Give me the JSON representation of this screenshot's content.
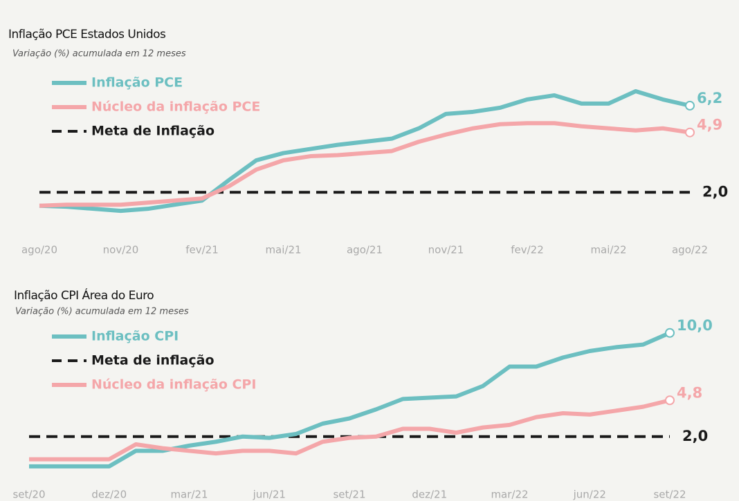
{
  "chart_data": [
    {
      "type": "line",
      "title": "Inflação PCE Estados Unidos",
      "subtitle": "Variação (%) acumulada em 12 meses",
      "categories": [
        "ago/20",
        null,
        null,
        "nov/20",
        null,
        null,
        "fev/21",
        null,
        null,
        "mai/21",
        null,
        null,
        "ago/21",
        null,
        null,
        "nov/21",
        null,
        null,
        "fev/22",
        null,
        null,
        "mai/22",
        null,
        null,
        "ago/22"
      ],
      "ylim": [
        0,
        7
      ],
      "legend": "top-left",
      "series": [
        {
          "name": "Inflação PCE",
          "color": "#6cbfc1",
          "dash": false,
          "values": [
            1.35,
            1.3,
            1.2,
            1.1,
            1.2,
            1.4,
            1.6,
            2.6,
            3.55,
            3.9,
            4.1,
            4.3,
            4.45,
            4.6,
            5.1,
            5.8,
            5.9,
            6.1,
            6.5,
            6.7,
            6.3,
            6.3,
            6.9,
            6.5,
            6.2
          ],
          "value_labels": [
            null,
            null,
            null,
            null,
            null,
            null,
            null,
            null,
            null,
            null,
            null,
            null,
            null,
            null,
            null,
            null,
            null,
            null,
            null,
            null,
            null,
            null,
            null,
            null,
            "6,2"
          ]
        },
        {
          "name": "Núcleo da inflação PCE",
          "color": "#f4a6a9",
          "dash": false,
          "values": [
            1.35,
            1.4,
            1.4,
            1.4,
            1.5,
            1.6,
            1.7,
            2.3,
            3.1,
            3.55,
            3.75,
            3.8,
            3.9,
            4.0,
            4.45,
            4.8,
            5.1,
            5.3,
            5.35,
            5.35,
            5.2,
            5.1,
            5.0,
            5.1,
            4.9
          ],
          "value_labels": [
            null,
            null,
            null,
            null,
            null,
            null,
            null,
            null,
            null,
            null,
            null,
            null,
            null,
            null,
            null,
            null,
            null,
            null,
            null,
            null,
            null,
            null,
            null,
            null,
            "4,9"
          ]
        },
        {
          "name": "Meta de Inflação",
          "color": "#1a1a1a",
          "dash": true,
          "values": [
            2,
            2,
            2,
            2,
            2,
            2,
            2,
            2,
            2,
            2,
            2,
            2,
            2,
            2,
            2,
            2,
            2,
            2,
            2,
            2,
            2,
            2,
            2,
            2,
            2
          ],
          "value_labels": [
            null,
            null,
            null,
            null,
            null,
            null,
            null,
            null,
            null,
            null,
            null,
            null,
            null,
            null,
            null,
            null,
            null,
            null,
            null,
            null,
            null,
            null,
            null,
            null,
            "2,0"
          ]
        }
      ]
    },
    {
      "type": "line",
      "title": "Inflação CPI Área do Euro",
      "subtitle": "Variação (%) acumulada em 12 meses",
      "categories": [
        "set/20",
        null,
        null,
        "dez/20",
        null,
        null,
        "mar/21",
        null,
        null,
        "jun/21",
        null,
        null,
        "set/21",
        null,
        null,
        "dez/21",
        null,
        null,
        "mar/22",
        null,
        null,
        "jun/22",
        null,
        null,
        "set/22"
      ],
      "ylim": [
        -1,
        11
      ],
      "legend": "top-left",
      "series": [
        {
          "name": "Inflação CPI",
          "color": "#6cbfc1",
          "dash": false,
          "values": [
            -0.3,
            -0.3,
            -0.3,
            -0.3,
            0.9,
            0.9,
            1.3,
            1.6,
            2.0,
            1.9,
            2.2,
            3.0,
            3.4,
            4.1,
            4.9,
            5.0,
            5.1,
            5.9,
            7.4,
            7.4,
            8.1,
            8.6,
            8.9,
            9.1,
            10.0
          ],
          "value_labels": [
            null,
            null,
            null,
            null,
            null,
            null,
            null,
            null,
            null,
            null,
            null,
            null,
            null,
            null,
            null,
            null,
            null,
            null,
            null,
            null,
            null,
            null,
            null,
            null,
            "10,0"
          ]
        },
        {
          "name": "Meta de inflação",
          "color": "#1a1a1a",
          "dash": true,
          "values": [
            2,
            2,
            2,
            2,
            2,
            2,
            2,
            2,
            2,
            2,
            2,
            2,
            2,
            2,
            2,
            2,
            2,
            2,
            2,
            2,
            2,
            2,
            2,
            2,
            2
          ],
          "value_labels": [
            null,
            null,
            null,
            null,
            null,
            null,
            null,
            null,
            null,
            null,
            null,
            null,
            null,
            null,
            null,
            null,
            null,
            null,
            null,
            null,
            null,
            null,
            null,
            null,
            "2,0"
          ]
        },
        {
          "name": "Núcleo da inflação CPI",
          "color": "#f4a6a9",
          "dash": false,
          "values": [
            0.25,
            0.25,
            0.25,
            0.25,
            1.4,
            1.1,
            0.9,
            0.7,
            0.9,
            0.9,
            0.7,
            1.6,
            1.9,
            2.0,
            2.6,
            2.6,
            2.3,
            2.7,
            2.9,
            3.5,
            3.8,
            3.7,
            4.0,
            4.3,
            4.8
          ],
          "value_labels": [
            null,
            null,
            null,
            null,
            null,
            null,
            null,
            null,
            null,
            null,
            null,
            null,
            null,
            null,
            null,
            null,
            null,
            null,
            null,
            null,
            null,
            null,
            null,
            null,
            "4,8"
          ]
        }
      ]
    }
  ]
}
